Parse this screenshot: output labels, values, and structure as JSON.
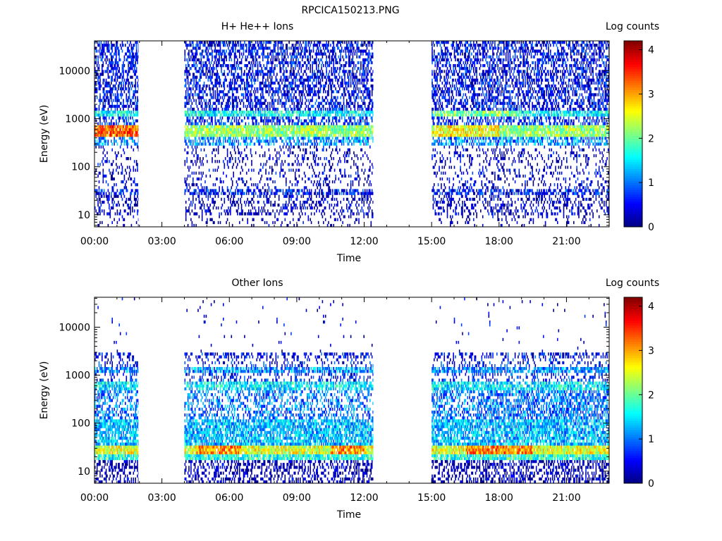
{
  "title": "RPCICA150213.PNG",
  "chart_data": [
    {
      "type": "heatmap",
      "title": "H+ He++ Ions",
      "xlabel": "Time",
      "ylabel": "Energy (eV)",
      "x_tick_labels": [
        "00:00",
        "03:00",
        "06:00",
        "09:00",
        "12:00",
        "15:00",
        "18:00",
        "21:00"
      ],
      "x_tick_hours": [
        0,
        3,
        6,
        9,
        12,
        15,
        18,
        21
      ],
      "xlim_hours": [
        0,
        22.9
      ],
      "y_scale": "log",
      "y_tick_labels": [
        "10",
        "100",
        "1000",
        "10000"
      ],
      "y_tick_values": [
        10,
        100,
        1000,
        10000
      ],
      "ylim": [
        5.6,
        42000
      ],
      "colorbar": {
        "label": "Log counts",
        "tick_labels": [
          "0",
          "1",
          "2",
          "3",
          "4"
        ],
        "range": [
          0,
          4.2
        ]
      },
      "data_intervals_hours": [
        [
          0,
          1.95
        ],
        [
          4.0,
          12.4
        ],
        [
          15.0,
          22.9
        ]
      ],
      "features": [
        {
          "energy_eV": 1250,
          "level": 2.0
        },
        {
          "energy_eV": 550,
          "level": 3.2
        },
        {
          "energy_eV": 30,
          "level": 1.0
        }
      ]
    },
    {
      "type": "heatmap",
      "title": "Other Ions",
      "xlabel": "Time",
      "ylabel": "Energy (eV)",
      "x_tick_labels": [
        "00:00",
        "03:00",
        "06:00",
        "09:00",
        "12:00",
        "15:00",
        "18:00",
        "21:00"
      ],
      "x_tick_hours": [
        0,
        3,
        6,
        9,
        12,
        15,
        18,
        21
      ],
      "xlim_hours": [
        0,
        22.9
      ],
      "y_scale": "log",
      "y_tick_labels": [
        "10",
        "100",
        "1000",
        "10000"
      ],
      "y_tick_values": [
        10,
        100,
        1000,
        10000
      ],
      "ylim": [
        5.6,
        42000
      ],
      "colorbar": {
        "label": "Log counts",
        "tick_labels": [
          "0",
          "1",
          "2",
          "3",
          "4"
        ],
        "range": [
          0,
          4.2
        ]
      },
      "data_intervals_hours": [
        [
          0,
          1.95
        ],
        [
          4.0,
          12.4
        ],
        [
          15.0,
          22.9
        ]
      ],
      "features": [
        {
          "energy_eV": 1250,
          "level": 1.3
        },
        {
          "energy_eV": 600,
          "level": 1.7
        },
        {
          "energy_eV": 100,
          "level": 1.3
        },
        {
          "energy_eV": 28,
          "level": 3.0
        }
      ]
    }
  ]
}
